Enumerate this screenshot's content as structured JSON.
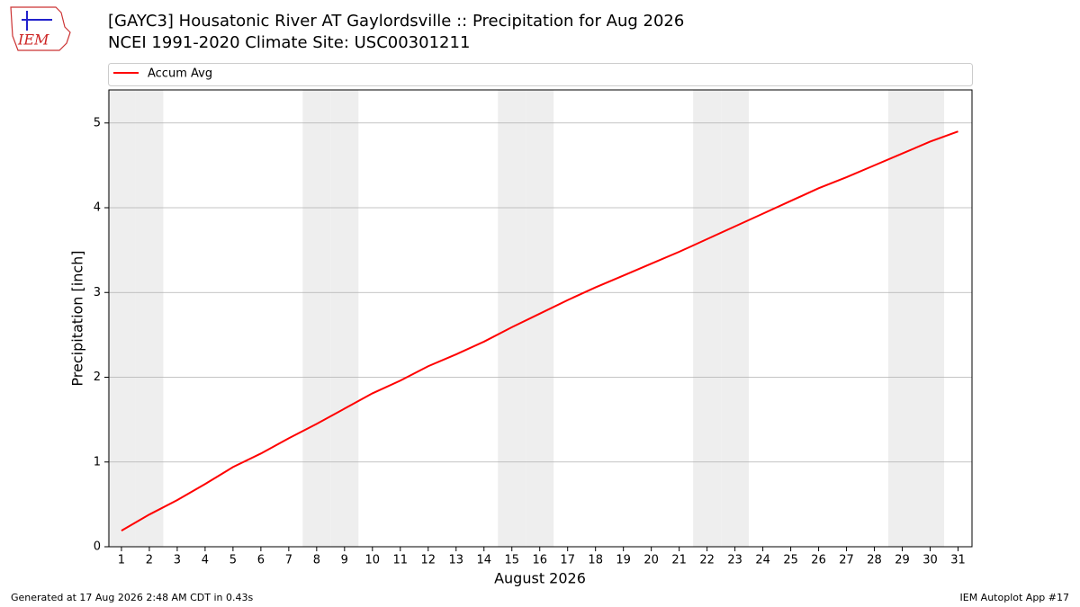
{
  "logo_text": "IEM",
  "footer": {
    "left": "Generated at 17 Aug 2026 2:48 AM CDT in 0.43s",
    "right": "IEM Autoplot App #17"
  },
  "chart_data": {
    "type": "line",
    "title": "[GAYC3] Housatonic River  AT Gaylordsville :: Precipitation for Aug 2026",
    "subtitle": "NCEI 1991-2020 Climate Site: USC00301211",
    "x_label": "August 2026",
    "y_label": "Precipitation [inch]",
    "x": [
      1,
      2,
      3,
      4,
      5,
      6,
      7,
      8,
      9,
      10,
      11,
      12,
      13,
      14,
      15,
      16,
      17,
      18,
      19,
      20,
      21,
      22,
      23,
      24,
      25,
      26,
      27,
      28,
      29,
      30,
      31
    ],
    "series": [
      {
        "name": "Accum Avg",
        "color": "#ff0000",
        "values": [
          0.19,
          0.38,
          0.55,
          0.74,
          0.94,
          1.1,
          1.28,
          1.45,
          1.63,
          1.81,
          1.96,
          2.13,
          2.27,
          2.42,
          2.59,
          2.75,
          2.91,
          3.06,
          3.2,
          3.34,
          3.48,
          3.63,
          3.78,
          3.93,
          4.08,
          4.23,
          4.36,
          4.5,
          4.64,
          4.78,
          4.9
        ]
      }
    ],
    "xlim": [
      0.55,
      31.5
    ],
    "ylim": [
      0,
      5.39
    ],
    "xticks": [
      1,
      2,
      3,
      4,
      5,
      6,
      7,
      8,
      9,
      10,
      11,
      12,
      13,
      14,
      15,
      16,
      17,
      18,
      19,
      20,
      21,
      22,
      23,
      24,
      25,
      26,
      27,
      28,
      29,
      30,
      31
    ],
    "yticks": [
      0,
      1,
      2,
      3,
      4,
      5
    ],
    "shaded_days": [
      1,
      2,
      8,
      9,
      15,
      16,
      22,
      23,
      29,
      30
    ],
    "shade_color": "#eeeeee",
    "grid": "y",
    "legend": "top"
  }
}
